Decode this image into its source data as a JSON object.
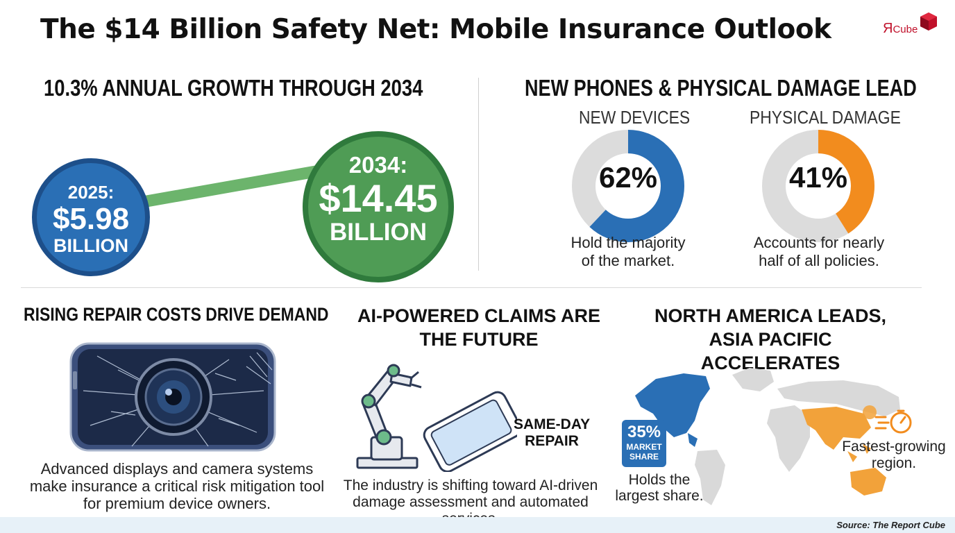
{
  "header": {
    "title": "The $14 Billion Safety Net: Mobile Insurance Outlook",
    "logo_text": "Я",
    "logo_sub": "Cube"
  },
  "growth": {
    "heading": "10.3% ANNUAL GROWTH THROUGH 2034",
    "start": {
      "year": "2025:",
      "amount": "$5.98",
      "unit": "BILLION",
      "color": "#2a6fb5"
    },
    "end": {
      "year": "2034:",
      "amount": "$14.45",
      "unit": "BILLION",
      "color": "#4f9c55"
    }
  },
  "segments": {
    "heading": "NEW PHONES & PHYSICAL DAMAGE LEAD",
    "items": [
      {
        "label": "NEW DEVICES",
        "value": "62%",
        "fraction": 0.62,
        "color": "#2a6fb5",
        "caption_line1": "Hold the majority",
        "caption_line2": "of the market."
      },
      {
        "label": "PHYSICAL DAMAGE",
        "value": "41%",
        "fraction": 0.41,
        "color": "#f28c1e",
        "caption_line1": "Accounts for nearly",
        "caption_line2": "half of all policies."
      }
    ]
  },
  "repair": {
    "heading": "RISING REPAIR COSTS DRIVE DEMAND",
    "caption": "Advanced displays and camera systems make insurance a critical risk mitigation tool for premium device owners."
  },
  "ai": {
    "heading_line1": "AI-POWERED CLAIMS ARE",
    "heading_line2": "THE FUTURE",
    "tag_line1": "SAME-DAY",
    "tag_line2": "REPAIR",
    "caption_line1": "The industry is shifting toward AI-driven",
    "caption_line2": "damage assessment and automated services."
  },
  "regions": {
    "heading_line1": "NORTH AMERICA LEADS,",
    "heading_line2": "ASIA PACIFIC ACCELERATES",
    "badge_pct": "35%",
    "badge_line1": "MARKET",
    "badge_line2": "SHARE",
    "holds_line1": "Holds the",
    "holds_line2": "largest share.",
    "fastest_line1": "Fastest-growing",
    "fastest_line2": "region."
  },
  "footer": {
    "source": "Source: The Report Cube"
  }
}
